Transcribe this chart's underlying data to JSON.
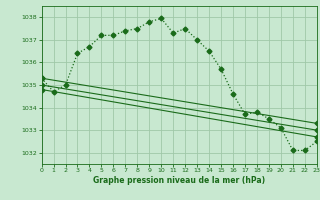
{
  "title": "Graphe pression niveau de la mer (hPa)",
  "bg_color": "#c8e8d0",
  "grid_color": "#a0c8a8",
  "line_color": "#1a6b1a",
  "xlim": [
    0,
    23
  ],
  "ylim": [
    1031.5,
    1038.5
  ],
  "yticks": [
    1032,
    1033,
    1034,
    1035,
    1036,
    1037,
    1038
  ],
  "xticks": [
    0,
    1,
    2,
    3,
    4,
    5,
    6,
    7,
    8,
    9,
    10,
    11,
    12,
    13,
    14,
    15,
    16,
    17,
    18,
    19,
    20,
    21,
    22,
    23
  ],
  "series1_x": [
    0,
    1,
    2,
    3,
    4,
    5,
    6,
    7,
    8,
    9,
    10,
    11,
    12,
    13,
    14,
    15,
    16,
    17,
    18,
    19,
    20,
    21,
    22,
    23
  ],
  "series1_y": [
    1035.3,
    1034.7,
    1035.0,
    1036.4,
    1036.7,
    1037.2,
    1037.2,
    1037.4,
    1037.5,
    1037.8,
    1037.95,
    1037.3,
    1037.5,
    1037.0,
    1036.5,
    1035.7,
    1034.6,
    1033.7,
    1033.8,
    1033.5,
    1033.1,
    1032.1,
    1032.1,
    1032.5
  ],
  "series2_x": [
    0,
    23
  ],
  "series2_y": [
    1035.3,
    1033.3
  ],
  "series3_x": [
    0,
    23
  ],
  "series3_y": [
    1035.0,
    1033.0
  ],
  "series4_x": [
    0,
    23
  ],
  "series4_y": [
    1034.8,
    1032.7
  ]
}
